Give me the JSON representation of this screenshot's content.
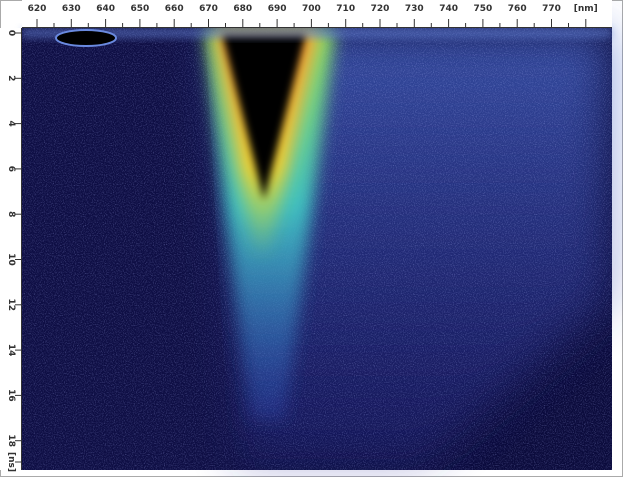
{
  "wavelength_axis": {
    "labels": [
      "620",
      "630",
      "640",
      "650",
      "660",
      "670",
      "680",
      "690",
      "700",
      "710",
      "720",
      "730",
      "740",
      "750",
      "760",
      "770",
      "[nm]"
    ]
  },
  "time_axis": {
    "labels": [
      "0",
      "2",
      "4",
      "6",
      "8",
      "10",
      "12",
      "14",
      "16",
      "18",
      "[ns]"
    ]
  }
}
